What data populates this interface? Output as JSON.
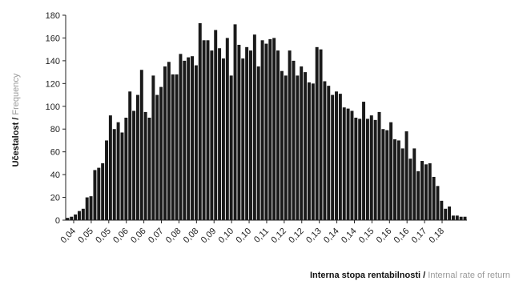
{
  "chart_data": {
    "type": "bar",
    "title": "",
    "ylabel": {
      "primary": "Učestalost",
      "separator": " / ",
      "secondary": "Frequency"
    },
    "xlabel": {
      "primary": "Interna stopa rentabilnosti",
      "separator": " / ",
      "secondary": "Internal rate of return"
    },
    "ylim": [
      0,
      180
    ],
    "yticks": [
      "0",
      "20",
      "40",
      "60",
      "80",
      "100",
      "120",
      "140",
      "160",
      "180"
    ],
    "xtick_labels": [
      "0,04",
      "0,05",
      "0,05",
      "0,06",
      "0,06",
      "0,07",
      "0,08",
      "0,08",
      "0,09",
      "0,10",
      "0,10",
      "0,11",
      "0,12",
      "0,12",
      "0,13",
      "0,14",
      "0,14",
      "0,15",
      "0,16",
      "0,16",
      "0,17",
      "0,18"
    ],
    "grid": false,
    "legend": "none",
    "bar_color": "#1a1a1a",
    "values": [
      2,
      3,
      5,
      8,
      10,
      20,
      21,
      44,
      46,
      50,
      70,
      92,
      80,
      86,
      77,
      90,
      113,
      96,
      110,
      132,
      95,
      90,
      127,
      110,
      117,
      135,
      139,
      128,
      128,
      146,
      140,
      143,
      144,
      136,
      173,
      158,
      158,
      149,
      167,
      151,
      142,
      160,
      127,
      172,
      154,
      142,
      152,
      149,
      163,
      135,
      158,
      155,
      159,
      160,
      149,
      131,
      127,
      149,
      140,
      127,
      135,
      130,
      121,
      120,
      152,
      150,
      122,
      118,
      110,
      113,
      111,
      99,
      98,
      96,
      90,
      89,
      104,
      89,
      92,
      88,
      95,
      80,
      79,
      86,
      71,
      70,
      63,
      78,
      54,
      63,
      43,
      52,
      49,
      50,
      38,
      30,
      17,
      10,
      12,
      4,
      4,
      3,
      3
    ]
  }
}
